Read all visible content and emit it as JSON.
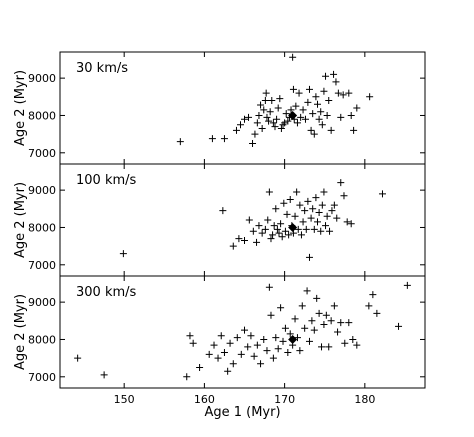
{
  "chart_data": [
    {
      "type": "scatter",
      "title": "30 km/s",
      "xlabel": "",
      "ylabel": "Age 2 (Myr)",
      "xlim": [
        142,
        187.5
      ],
      "ylim": [
        6700,
        9700
      ],
      "xticks": [],
      "yticks": [
        7000,
        8000,
        9000
      ],
      "ytick_labels": [
        "7000",
        "8000",
        "9000"
      ],
      "mean": [
        171,
        8000
      ],
      "points": [
        [
          157,
          7300
        ],
        [
          161,
          7380
        ],
        [
          162.5,
          7380
        ],
        [
          164,
          7600
        ],
        [
          164.5,
          7750
        ],
        [
          165,
          7900
        ],
        [
          165.5,
          7950
        ],
        [
          166,
          7250
        ],
        [
          166.3,
          7500
        ],
        [
          166.6,
          7800
        ],
        [
          166.8,
          8000
        ],
        [
          167,
          8280
        ],
        [
          167.2,
          7650
        ],
        [
          167.4,
          8150
        ],
        [
          167.6,
          8400
        ],
        [
          167.7,
          8600
        ],
        [
          167.8,
          7950
        ],
        [
          168,
          7850
        ],
        [
          168.2,
          8100
        ],
        [
          168.4,
          8400
        ],
        [
          168.6,
          7800
        ],
        [
          168.8,
          7700
        ],
        [
          169,
          7900
        ],
        [
          169.2,
          8200
        ],
        [
          169.4,
          8450
        ],
        [
          169.6,
          7650
        ],
        [
          169.8,
          7750
        ],
        [
          170,
          7800
        ],
        [
          170.2,
          8050
        ],
        [
          170.4,
          7850
        ],
        [
          170.6,
          7950
        ],
        [
          170.8,
          8150
        ],
        [
          171,
          9560
        ],
        [
          171.1,
          8700
        ],
        [
          171.2,
          7900
        ],
        [
          171.4,
          8250
        ],
        [
          171.6,
          7800
        ],
        [
          171.8,
          8600
        ],
        [
          172,
          7950
        ],
        [
          172.3,
          8150
        ],
        [
          172.6,
          7900
        ],
        [
          172.9,
          8350
        ],
        [
          173.1,
          8700
        ],
        [
          173.3,
          7600
        ],
        [
          173.5,
          8050
        ],
        [
          173.7,
          7500
        ],
        [
          173.9,
          8500
        ],
        [
          174.1,
          8300
        ],
        [
          174.3,
          7900
        ],
        [
          174.5,
          8100
        ],
        [
          174.7,
          7750
        ],
        [
          174.9,
          8650
        ],
        [
          175.1,
          9050
        ],
        [
          175.3,
          8000
        ],
        [
          175.5,
          8400
        ],
        [
          175.8,
          7600
        ],
        [
          176.1,
          9100
        ],
        [
          176.4,
          8900
        ],
        [
          176.7,
          8600
        ],
        [
          177,
          7950
        ],
        [
          177.3,
          8550
        ],
        [
          178,
          8600
        ],
        [
          178.3,
          8000
        ],
        [
          178.6,
          7600
        ],
        [
          179,
          8200
        ],
        [
          180.6,
          8500
        ]
      ]
    },
    {
      "type": "scatter",
      "title": "100 km/s",
      "xlabel": "",
      "ylabel": "Age 2 (Myr)",
      "xlim": [
        142,
        187.5
      ],
      "ylim": [
        6700,
        9700
      ],
      "xticks": [],
      "yticks": [
        7000,
        8000,
        9000
      ],
      "ytick_labels": [
        "7000",
        "8000",
        "9000"
      ],
      "mean": [
        171,
        8000
      ],
      "points": [
        [
          149.9,
          7300
        ],
        [
          162.3,
          8450
        ],
        [
          163.6,
          7500
        ],
        [
          164.3,
          7700
        ],
        [
          165,
          7650
        ],
        [
          165.6,
          8200
        ],
        [
          166.1,
          7900
        ],
        [
          166.5,
          7600
        ],
        [
          166.8,
          8050
        ],
        [
          167.2,
          7850
        ],
        [
          167.6,
          7950
        ],
        [
          167.9,
          8200
        ],
        [
          168.1,
          8950
        ],
        [
          168.3,
          7700
        ],
        [
          168.5,
          7800
        ],
        [
          168.7,
          8050
        ],
        [
          168.9,
          8500
        ],
        [
          169.1,
          7950
        ],
        [
          169.3,
          7850
        ],
        [
          169.5,
          8100
        ],
        [
          169.7,
          7750
        ],
        [
          169.9,
          8650
        ],
        [
          170.1,
          7900
        ],
        [
          170.3,
          8350
        ],
        [
          170.5,
          7800
        ],
        [
          170.7,
          8750
        ],
        [
          170.9,
          8050
        ],
        [
          171.1,
          7850
        ],
        [
          171.3,
          8300
        ],
        [
          171.5,
          8950
        ],
        [
          171.7,
          7950
        ],
        [
          171.9,
          8600
        ],
        [
          172.1,
          7800
        ],
        [
          172.3,
          8150
        ],
        [
          172.5,
          8450
        ],
        [
          172.7,
          7950
        ],
        [
          172.9,
          8700
        ],
        [
          173.1,
          7200
        ],
        [
          173.3,
          8250
        ],
        [
          173.5,
          8500
        ],
        [
          173.7,
          7950
        ],
        [
          173.9,
          8800
        ],
        [
          174.1,
          8150
        ],
        [
          174.3,
          8400
        ],
        [
          174.5,
          7900
        ],
        [
          174.7,
          8600
        ],
        [
          174.9,
          8950
        ],
        [
          175.1,
          8050
        ],
        [
          175.3,
          8300
        ],
        [
          175.6,
          7900
        ],
        [
          175.9,
          8450
        ],
        [
          176.2,
          8600
        ],
        [
          176.5,
          8250
        ],
        [
          177,
          9200
        ],
        [
          177.4,
          8850
        ],
        [
          177.8,
          8150
        ],
        [
          178.3,
          8100
        ],
        [
          182.2,
          8900
        ]
      ]
    },
    {
      "type": "scatter",
      "title": "300 km/s",
      "xlabel": "Age 1 (Myr)",
      "ylabel": "Age 2 (Myr)",
      "xlim": [
        142,
        187.5
      ],
      "ylim": [
        6700,
        9700
      ],
      "xticks": [
        150,
        160,
        170,
        180
      ],
      "xtick_labels": [
        "150",
        "160",
        "170",
        "180"
      ],
      "yticks": [
        7000,
        8000,
        9000
      ],
      "ytick_labels": [
        "7000",
        "8000",
        "9000"
      ],
      "mean": [
        171,
        8000
      ],
      "points": [
        [
          144.2,
          7500
        ],
        [
          147.5,
          7050
        ],
        [
          157.8,
          7000
        ],
        [
          158.2,
          8100
        ],
        [
          158.6,
          7900
        ],
        [
          159.4,
          7250
        ],
        [
          160.6,
          7600
        ],
        [
          161.2,
          7850
        ],
        [
          161.7,
          7500
        ],
        [
          162.1,
          8100
        ],
        [
          162.5,
          7650
        ],
        [
          162.9,
          7150
        ],
        [
          163.2,
          7900
        ],
        [
          163.6,
          7350
        ],
        [
          164.1,
          8050
        ],
        [
          164.6,
          7600
        ],
        [
          165,
          8250
        ],
        [
          165.4,
          7800
        ],
        [
          165.8,
          8100
        ],
        [
          166.2,
          7550
        ],
        [
          166.6,
          7850
        ],
        [
          167,
          7350
        ],
        [
          167.4,
          8000
        ],
        [
          167.8,
          7700
        ],
        [
          168.1,
          9400
        ],
        [
          168.3,
          8650
        ],
        [
          168.6,
          7500
        ],
        [
          168.9,
          8050
        ],
        [
          169.2,
          7750
        ],
        [
          169.5,
          8850
        ],
        [
          169.8,
          7950
        ],
        [
          170.1,
          8300
        ],
        [
          170.4,
          7650
        ],
        [
          170.7,
          8150
        ],
        [
          171,
          7850
        ],
        [
          171.3,
          8550
        ],
        [
          171.6,
          8050
        ],
        [
          171.9,
          7700
        ],
        [
          172.2,
          8900
        ],
        [
          172.5,
          8300
        ],
        [
          172.8,
          9300
        ],
        [
          173.1,
          7950
        ],
        [
          173.4,
          8500
        ],
        [
          173.7,
          8250
        ],
        [
          174,
          9100
        ],
        [
          174.3,
          8700
        ],
        [
          174.6,
          7800
        ],
        [
          174.9,
          8400
        ],
        [
          175.2,
          8650
        ],
        [
          175.5,
          7800
        ],
        [
          175.8,
          8500
        ],
        [
          176.2,
          8900
        ],
        [
          176.6,
          8200
        ],
        [
          177,
          8450
        ],
        [
          177.5,
          7900
        ],
        [
          178,
          8450
        ],
        [
          178.5,
          8000
        ],
        [
          179,
          7850
        ],
        [
          180.5,
          8900
        ],
        [
          181,
          9200
        ],
        [
          181.5,
          8700
        ],
        [
          184.2,
          8350
        ],
        [
          185.3,
          9450
        ]
      ]
    }
  ]
}
